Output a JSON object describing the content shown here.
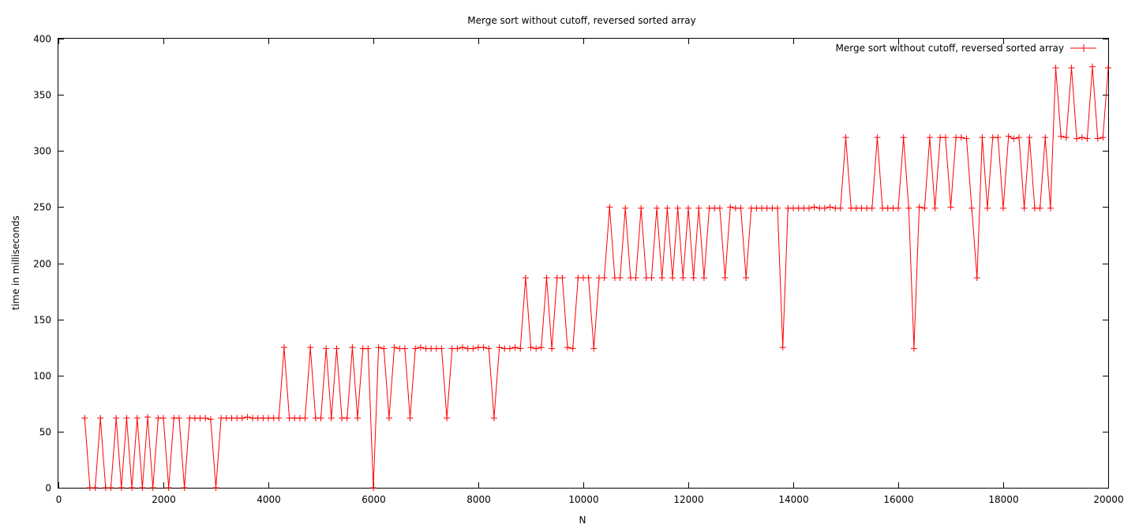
{
  "chart_data": {
    "type": "line",
    "title": "Merge sort without cutoff, reversed sorted array",
    "xlabel": "N",
    "ylabel": "time in milliseconds",
    "xlim": [
      0,
      20000
    ],
    "ylim": [
      0,
      400
    ],
    "xticks": [
      0,
      2000,
      4000,
      6000,
      8000,
      10000,
      12000,
      14000,
      16000,
      18000,
      20000
    ],
    "yticks": [
      0,
      50,
      100,
      150,
      200,
      250,
      300,
      350,
      400
    ],
    "grid": false,
    "legend_position": "top-right",
    "series": [
      {
        "name": "Merge sort without cutoff, reversed sorted array",
        "color": "#ff0000",
        "marker": "plus",
        "x": [
          500,
          600,
          700,
          800,
          900,
          1000,
          1100,
          1200,
          1300,
          1400,
          1500,
          1600,
          1700,
          1800,
          1900,
          2000,
          2100,
          2200,
          2300,
          2400,
          2500,
          2600,
          2700,
          2800,
          2900,
          3000,
          3100,
          3200,
          3300,
          3400,
          3500,
          3600,
          3700,
          3800,
          3900,
          4000,
          4100,
          4200,
          4300,
          4400,
          4500,
          4600,
          4700,
          4800,
          4900,
          5000,
          5100,
          5200,
          5300,
          5400,
          5500,
          5600,
          5700,
          5800,
          5900,
          6000,
          6100,
          6200,
          6300,
          6400,
          6500,
          6600,
          6700,
          6800,
          6900,
          7000,
          7100,
          7200,
          7300,
          7400,
          7500,
          7600,
          7700,
          7800,
          7900,
          8000,
          8100,
          8200,
          8300,
          8400,
          8500,
          8600,
          8700,
          8800,
          8900,
          9000,
          9100,
          9200,
          9300,
          9400,
          9500,
          9600,
          9700,
          9800,
          9900,
          10000,
          10100,
          10200,
          10300,
          10400,
          10500,
          10600,
          10700,
          10800,
          10900,
          11000,
          11100,
          11200,
          11300,
          11400,
          11500,
          11600,
          11700,
          11800,
          11900,
          12000,
          12100,
          12200,
          12300,
          12400,
          12500,
          12600,
          12700,
          12800,
          12900,
          13000,
          13100,
          13200,
          13300,
          13400,
          13500,
          13600,
          13700,
          13800,
          13900,
          14000,
          14100,
          14200,
          14300,
          14400,
          14500,
          14600,
          14700,
          14800,
          14900,
          15000,
          15100,
          15200,
          15300,
          15400,
          15500,
          15600,
          15700,
          15800,
          15900,
          16000,
          16100,
          16200,
          16300,
          16400,
          16500,
          16600,
          16700,
          16800,
          16900,
          17000,
          17100,
          17200,
          17300,
          17400,
          17500,
          17600,
          17700,
          17800,
          17900,
          18000,
          18100,
          18200,
          18300,
          18400,
          18500,
          18600,
          18700,
          18800,
          18900,
          19000,
          19100,
          19200,
          19300,
          19400,
          19500,
          19600,
          19700,
          19800,
          19900,
          20000
        ],
        "y": [
          62,
          0,
          0,
          62,
          0,
          0,
          62,
          0,
          62,
          0,
          62,
          0,
          63,
          0,
          62,
          62,
          0,
          62,
          62,
          0,
          62,
          62,
          62,
          62,
          61,
          0,
          62,
          62,
          62,
          62,
          62,
          63,
          62,
          62,
          62,
          62,
          62,
          62,
          125,
          62,
          62,
          62,
          62,
          125,
          62,
          62,
          124,
          62,
          124,
          62,
          62,
          125,
          62,
          124,
          124,
          0,
          125,
          124,
          62,
          125,
          124,
          124,
          62,
          124,
          125,
          124,
          124,
          124,
          124,
          62,
          124,
          124,
          125,
          124,
          124,
          125,
          125,
          124,
          62,
          125,
          124,
          124,
          125,
          124,
          187,
          125,
          124,
          125,
          187,
          124,
          187,
          187,
          125,
          124,
          187,
          187,
          187,
          124,
          187,
          187,
          250,
          187,
          187,
          249,
          187,
          187,
          249,
          187,
          187,
          249,
          187,
          249,
          187,
          249,
          187,
          249,
          187,
          249,
          187,
          249,
          249,
          249,
          187,
          250,
          249,
          249,
          187,
          249,
          249,
          249,
          249,
          249,
          249,
          125,
          249,
          249,
          249,
          249,
          249,
          250,
          249,
          249,
          250,
          249,
          249,
          312,
          249,
          249,
          249,
          249,
          249,
          312,
          249,
          249,
          249,
          249,
          312,
          249,
          124,
          250,
          249,
          312,
          249,
          312,
          312,
          250,
          312,
          312,
          311,
          249,
          187,
          312,
          249,
          312,
          312,
          249,
          313,
          311,
          312,
          249,
          312,
          249,
          249,
          312,
          249,
          374,
          313,
          312,
          374,
          311,
          312,
          311,
          375,
          311,
          312,
          374
        ]
      }
    ]
  }
}
